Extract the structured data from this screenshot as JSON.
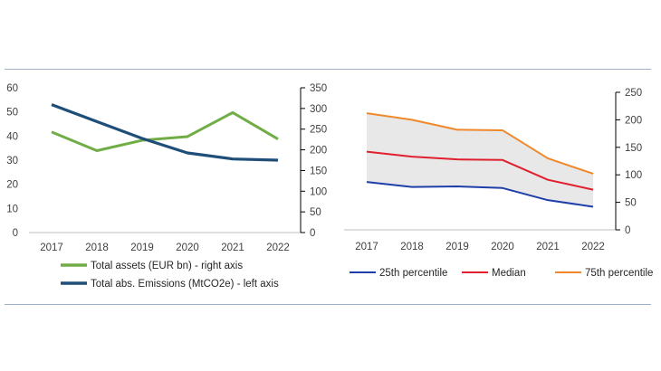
{
  "chart_data": [
    {
      "type": "line",
      "categories": [
        "2017",
        "2018",
        "2019",
        "2020",
        "2021",
        "2022"
      ],
      "y_left": {
        "ylim": [
          0,
          60
        ],
        "ticks": [
          "0",
          "10",
          "20",
          "30",
          "40",
          "50",
          "60"
        ]
      },
      "y_right": {
        "ylim": [
          0,
          350
        ],
        "ticks": [
          "0",
          "50",
          "100",
          "150",
          "200",
          "250",
          "300",
          "350"
        ]
      },
      "series": [
        {
          "name": "Total assets (EUR bn) - right axis",
          "axis": "right",
          "color": "#70ad47",
          "values": [
            243,
            198,
            223,
            232,
            290,
            226
          ]
        },
        {
          "name": "Total abs. Emissions (MtCO2e) - left axis",
          "axis": "left",
          "color": "#1f4e79",
          "values": [
            53,
            46,
            39,
            33,
            30.5,
            30
          ]
        }
      ],
      "legend_position": "bottom"
    },
    {
      "type": "area",
      "categories": [
        "2017",
        "2018",
        "2019",
        "2020",
        "2021",
        "2022"
      ],
      "ylim": [
        0,
        250
      ],
      "ticks": [
        "0",
        "50",
        "100",
        "150",
        "200",
        "250"
      ],
      "shaded_band": {
        "between": [
          "25th percentile",
          "75th percentile"
        ],
        "color": "#e8e8e8"
      },
      "series": [
        {
          "name": "25th percentile",
          "color": "#1f3fa8",
          "values": [
            87,
            78,
            79,
            76,
            54,
            42
          ]
        },
        {
          "name": "Median",
          "color": "#e0202f",
          "values": [
            142,
            133,
            128,
            127,
            91,
            73
          ]
        },
        {
          "name": "75th percentile",
          "color": "#f0882a",
          "values": [
            212,
            200,
            182,
            181,
            130,
            102
          ]
        }
      ],
      "legend_position": "bottom"
    }
  ]
}
